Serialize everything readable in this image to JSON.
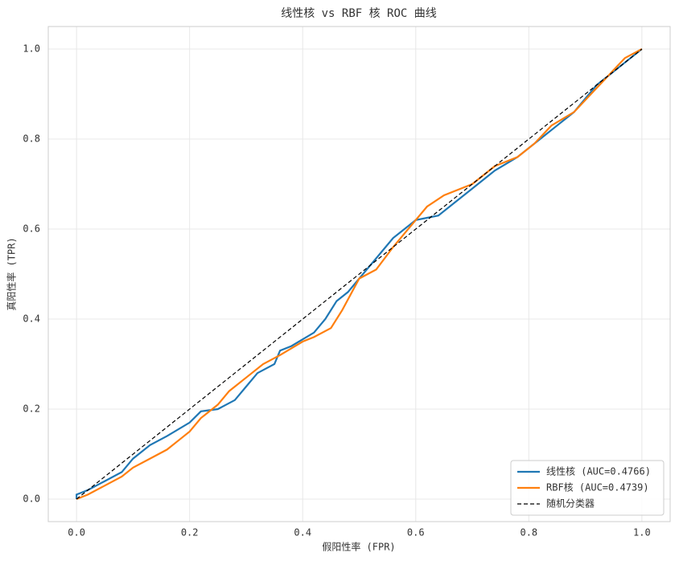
{
  "chart_data": {
    "type": "line",
    "title": "线性核 vs RBF 核 ROC 曲线",
    "xlabel": "假阳性率 (FPR)",
    "ylabel": "真阳性率 (TPR)",
    "xlim": [
      -0.05,
      1.05
    ],
    "ylim": [
      -0.05,
      1.05
    ],
    "xticks": [
      {
        "value": 0,
        "label": "0.0"
      },
      0.2,
      0.4,
      0.6,
      0.8,
      {
        "value": 1,
        "label": "1.0"
      }
    ],
    "yticks": [
      {
        "value": 0,
        "label": "0.0"
      },
      0.2,
      0.4,
      0.6,
      0.8,
      {
        "value": 1,
        "label": "1.0"
      }
    ],
    "grid": true,
    "legend": "lower right",
    "series": [
      {
        "name": "线性核 (AUC=0.4766)",
        "color": "#1f77b4",
        "linestyle": "solid",
        "x": [
          0,
          0,
          0.02,
          0.05,
          0.08,
          0.1,
          0.13,
          0.16,
          0.2,
          0.22,
          0.25,
          0.28,
          0.3,
          0.32,
          0.35,
          0.36,
          0.38,
          0.4,
          0.42,
          0.44,
          0.46,
          0.48,
          0.5,
          0.52,
          0.54,
          0.56,
          0.58,
          0.6,
          0.62,
          0.64,
          0.66,
          0.7,
          0.74,
          0.78,
          0.82,
          0.85,
          0.88,
          0.9,
          0.92,
          0.95,
          0.98,
          1
        ],
        "y": [
          0,
          0.01,
          0.02,
          0.04,
          0.06,
          0.09,
          0.12,
          0.14,
          0.17,
          0.195,
          0.2,
          0.22,
          0.25,
          0.28,
          0.3,
          0.33,
          0.34,
          0.355,
          0.37,
          0.4,
          0.44,
          0.46,
          0.49,
          0.52,
          0.55,
          0.58,
          0.6,
          0.62,
          0.625,
          0.63,
          0.65,
          0.69,
          0.73,
          0.76,
          0.8,
          0.83,
          0.86,
          0.89,
          0.92,
          0.95,
          0.98,
          1
        ]
      },
      {
        "name": "RBF核 (AUC=0.4739)",
        "color": "#ff7f0e",
        "linestyle": "solid",
        "x": [
          0,
          0.02,
          0.05,
          0.08,
          0.1,
          0.13,
          0.16,
          0.18,
          0.2,
          0.22,
          0.25,
          0.27,
          0.3,
          0.33,
          0.36,
          0.38,
          0.4,
          0.42,
          0.45,
          0.47,
          0.5,
          0.53,
          0.56,
          0.58,
          0.6,
          0.62,
          0.65,
          0.7,
          0.74,
          0.78,
          0.81,
          0.84,
          0.88,
          0.91,
          0.94,
          0.97,
          1
        ],
        "y": [
          0,
          0.01,
          0.03,
          0.05,
          0.07,
          0.09,
          0.11,
          0.13,
          0.15,
          0.18,
          0.21,
          0.24,
          0.27,
          0.3,
          0.32,
          0.335,
          0.35,
          0.36,
          0.38,
          0.42,
          0.49,
          0.51,
          0.56,
          0.59,
          0.62,
          0.65,
          0.675,
          0.7,
          0.74,
          0.76,
          0.79,
          0.83,
          0.86,
          0.9,
          0.94,
          0.98,
          1
        ]
      },
      {
        "name": "随机分类器",
        "color": "#000000",
        "linestyle": "dashed",
        "x": [
          0,
          1
        ],
        "y": [
          0,
          1
        ]
      }
    ]
  }
}
